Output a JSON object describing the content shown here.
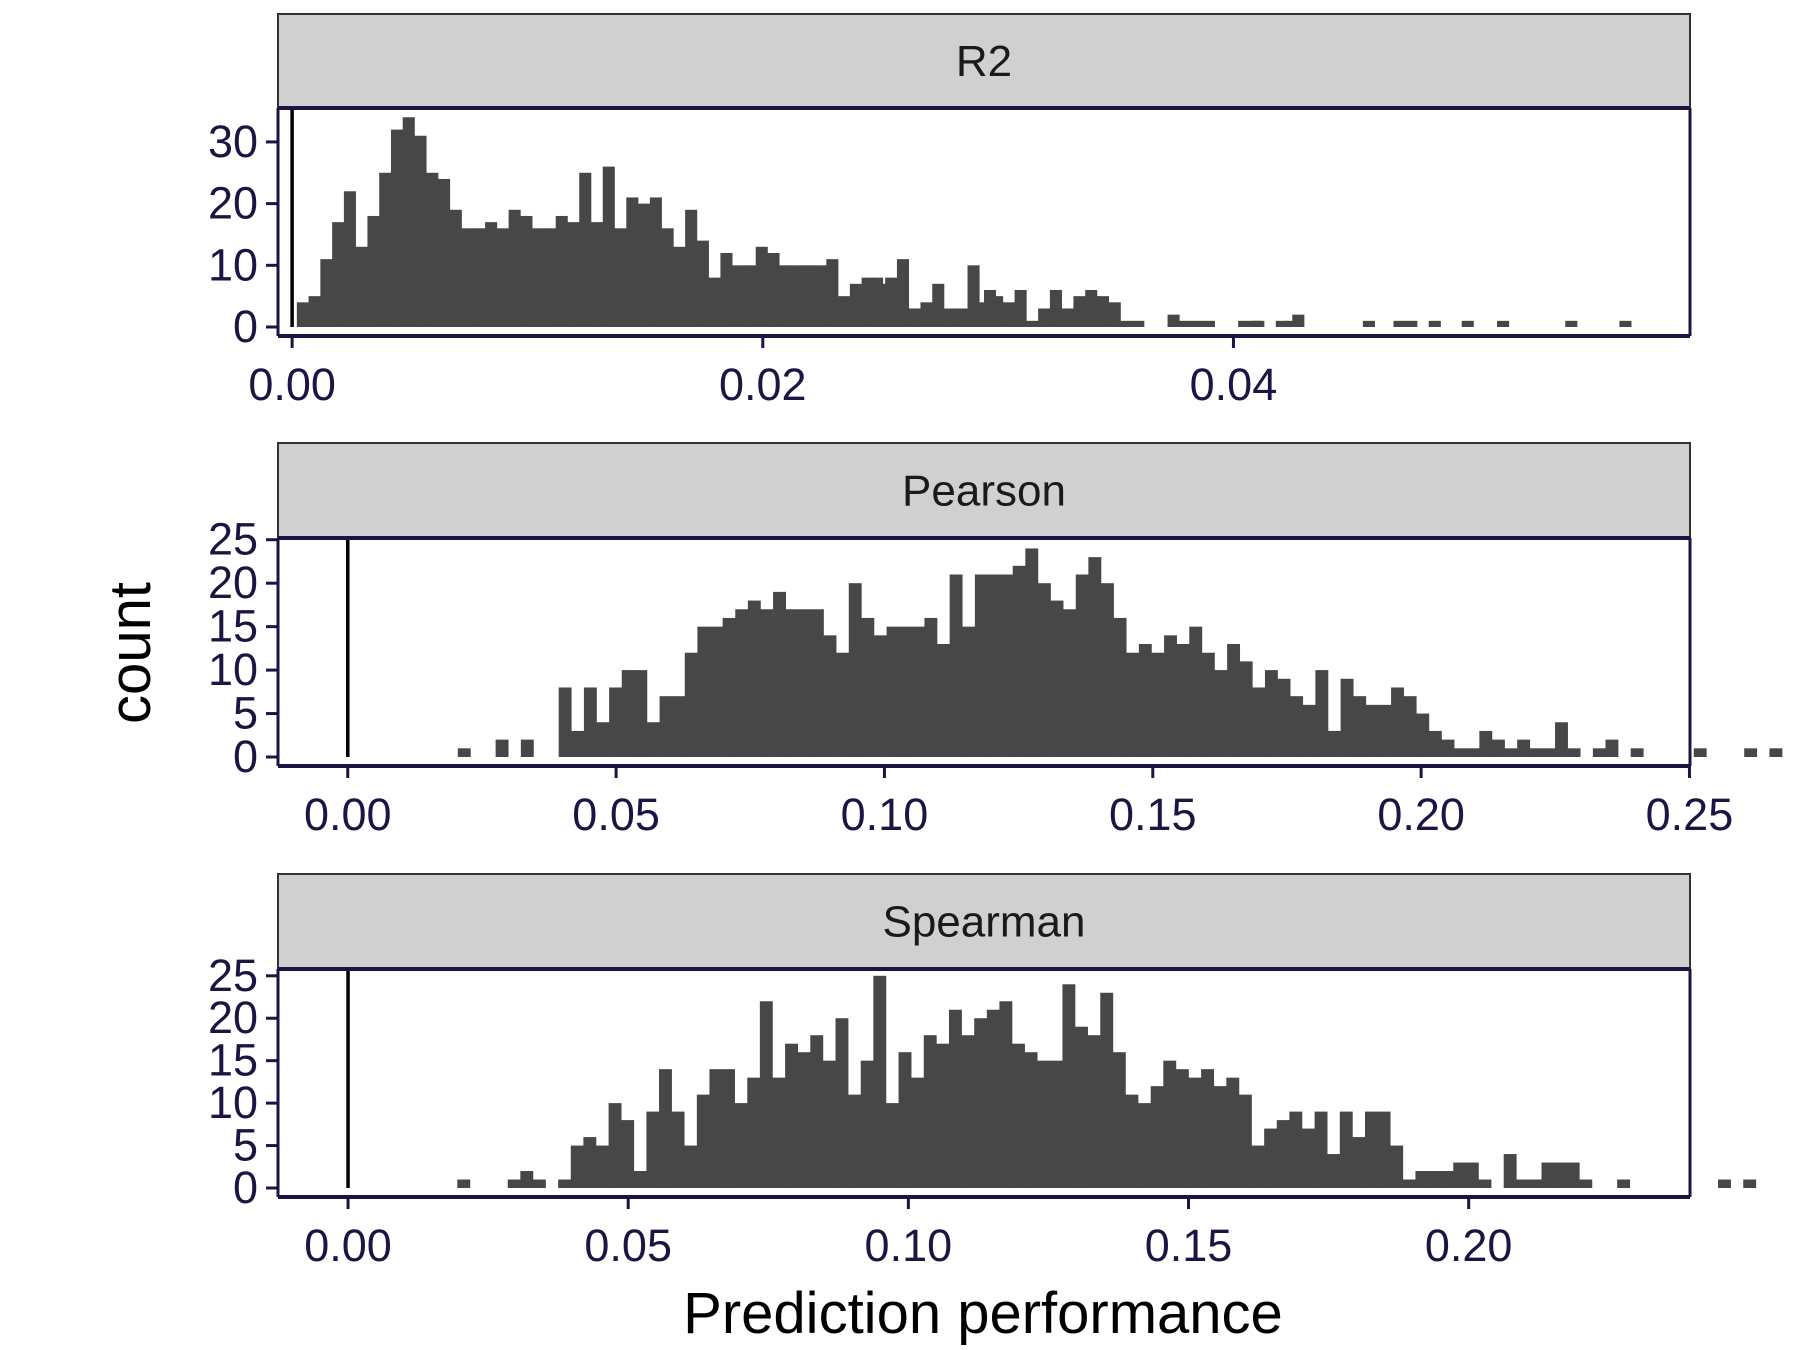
{
  "chart_data": {
    "type": "bar",
    "xlabel": "Prediction performance",
    "ylabel": "count",
    "grid": false,
    "colors": {
      "bar": "#474747",
      "strip_fill": "#d0d0d0",
      "frame": "#1b1544",
      "zero_line": "#000000"
    },
    "panels": [
      {
        "name": "R2",
        "xlim": [
          -0.0006,
          0.0594
        ],
        "ylim": [
          0,
          35.5
        ],
        "xticks": [
          {
            "value": 0.0,
            "label": "0.00"
          },
          {
            "value": 0.02,
            "label": "0.02"
          },
          {
            "value": 0.04,
            "label": "0.04"
          }
        ],
        "yticks": [
          {
            "value": 0,
            "label": "0"
          },
          {
            "value": 10,
            "label": "10"
          },
          {
            "value": 20,
            "label": "20"
          },
          {
            "value": 30,
            "label": "30"
          }
        ],
        "bin_start": 0.0002,
        "bin_width": 0.0005,
        "counts": [
          4,
          5,
          11,
          17,
          22,
          13,
          18,
          25,
          32,
          34,
          31,
          25,
          24,
          19,
          16,
          16,
          17,
          16,
          19,
          18,
          16,
          16,
          18,
          17,
          25,
          17,
          26,
          16,
          21,
          20,
          21,
          16,
          13,
          19,
          14,
          8,
          12,
          10,
          10,
          13,
          12,
          10,
          10,
          10,
          10,
          11,
          5,
          7,
          6,
          7,
          8,
          11,
          3,
          4,
          7,
          3,
          3,
          10,
          4,
          5,
          4,
          6,
          1,
          3,
          6,
          3,
          5,
          6,
          5,
          4,
          1,
          1,
          0,
          0,
          2,
          1,
          1,
          1,
          0,
          0,
          1,
          1,
          0,
          0,
          1,
          0,
          0,
          0,
          0,
          0,
          0,
          0,
          0,
          0,
          0,
          0,
          0,
          0,
          0,
          1,
          0,
          0,
          1,
          0,
          0,
          0,
          0,
          0,
          0,
          0,
          0,
          0,
          0,
          0,
          0,
          0,
          0,
          0,
          0,
          0,
          0,
          0,
          0,
          0,
          0,
          0,
          0,
          0,
          0,
          0,
          0,
          1,
          0,
          0,
          0,
          0,
          0,
          0,
          0,
          0,
          1
        ],
        "sparse_bars": [
          [
            0.0242,
            8
          ],
          [
            0.0246,
            8
          ],
          [
            0.0294,
            6
          ],
          [
            0.0318,
            3
          ],
          [
            0.0332,
            3
          ],
          [
            0.0338,
            5
          ],
          [
            0.0408,
            1
          ],
          [
            0.0418,
            1
          ],
          [
            0.0425,
            2
          ],
          [
            0.0455,
            1
          ],
          [
            0.0468,
            1
          ],
          [
            0.0473,
            1
          ],
          [
            0.0483,
            1
          ],
          [
            0.0541,
            1
          ],
          [
            0.0564,
            1
          ]
        ]
      },
      {
        "name": "Pearson",
        "xlim": [
          -0.013,
          0.2501
        ],
        "ylim": [
          0,
          25.2
        ],
        "xticks": [
          {
            "value": 0.0,
            "label": "0.00"
          },
          {
            "value": 0.05,
            "label": "0.05"
          },
          {
            "value": 0.1,
            "label": "0.10"
          },
          {
            "value": 0.15,
            "label": "0.15"
          },
          {
            "value": 0.2,
            "label": "0.20"
          },
          {
            "value": 0.25,
            "label": "0.25"
          }
        ],
        "yticks": [
          {
            "value": 0,
            "label": "0"
          },
          {
            "value": 5,
            "label": "5"
          },
          {
            "value": 10,
            "label": "10"
          },
          {
            "value": 15,
            "label": "15"
          },
          {
            "value": 20,
            "label": "20"
          },
          {
            "value": 25,
            "label": "25"
          }
        ],
        "bin_start": 0.0205,
        "bin_width": 0.00235,
        "counts": [
          1,
          0,
          0,
          2,
          0,
          2,
          0,
          0,
          8,
          3,
          8,
          4,
          8,
          10,
          10,
          4,
          7,
          7,
          12,
          15,
          15,
          16,
          17,
          18,
          17,
          19,
          17,
          17,
          17,
          14,
          12,
          20,
          16,
          14,
          15,
          15,
          15,
          16,
          13,
          21,
          15,
          21,
          21,
          21,
          22,
          24,
          20,
          18,
          17,
          21,
          23,
          20,
          16,
          12,
          13,
          12,
          14,
          13,
          15,
          12,
          10,
          13,
          11,
          8,
          10,
          9,
          7,
          6,
          10,
          3,
          9,
          7,
          6,
          6,
          8,
          7,
          5,
          3,
          2,
          1,
          1,
          3,
          2,
          1,
          2,
          1,
          1,
          4,
          1,
          0,
          1,
          2,
          0,
          1,
          0,
          0,
          0,
          0,
          1,
          0,
          0,
          0,
          1,
          0,
          1
        ],
        "sparse_bars": []
      },
      {
        "name": "Spearman",
        "xlim": [
          -0.0125,
          0.2395
        ],
        "ylim": [
          0,
          25.8
        ],
        "xticks": [
          {
            "value": 0.0,
            "label": "0.00"
          },
          {
            "value": 0.05,
            "label": "0.05"
          },
          {
            "value": 0.1,
            "label": "0.10"
          },
          {
            "value": 0.15,
            "label": "0.15"
          },
          {
            "value": 0.2,
            "label": "0.20"
          }
        ],
        "yticks": [
          {
            "value": 0,
            "label": "0"
          },
          {
            "value": 5,
            "label": "5"
          },
          {
            "value": 10,
            "label": "10"
          },
          {
            "value": 15,
            "label": "15"
          },
          {
            "value": 20,
            "label": "20"
          },
          {
            "value": 25,
            "label": "25"
          }
        ],
        "bin_start": 0.0195,
        "bin_width": 0.00225,
        "counts": [
          1,
          0,
          0,
          0,
          1,
          2,
          1,
          0,
          1,
          5,
          6,
          5,
          10,
          8,
          2,
          9,
          14,
          9,
          5,
          11,
          14,
          14,
          10,
          13,
          22,
          13,
          17,
          16,
          18,
          15,
          20,
          11,
          15,
          25,
          10,
          16,
          13,
          18,
          17,
          21,
          18,
          20,
          21,
          22,
          17,
          16,
          15,
          15,
          24,
          19,
          18,
          23,
          16,
          11,
          10,
          12,
          15,
          14,
          13,
          14,
          12,
          13,
          11,
          5,
          7,
          8,
          9,
          7,
          9,
          4,
          9,
          6,
          9,
          9,
          5,
          1,
          2,
          2,
          2,
          3,
          3,
          1,
          0,
          4,
          1,
          1,
          3,
          3,
          3,
          1,
          0,
          0,
          1,
          0,
          0,
          0,
          0,
          0,
          0,
          0,
          1,
          0,
          1
        ],
        "sparse_bars": []
      }
    ]
  }
}
